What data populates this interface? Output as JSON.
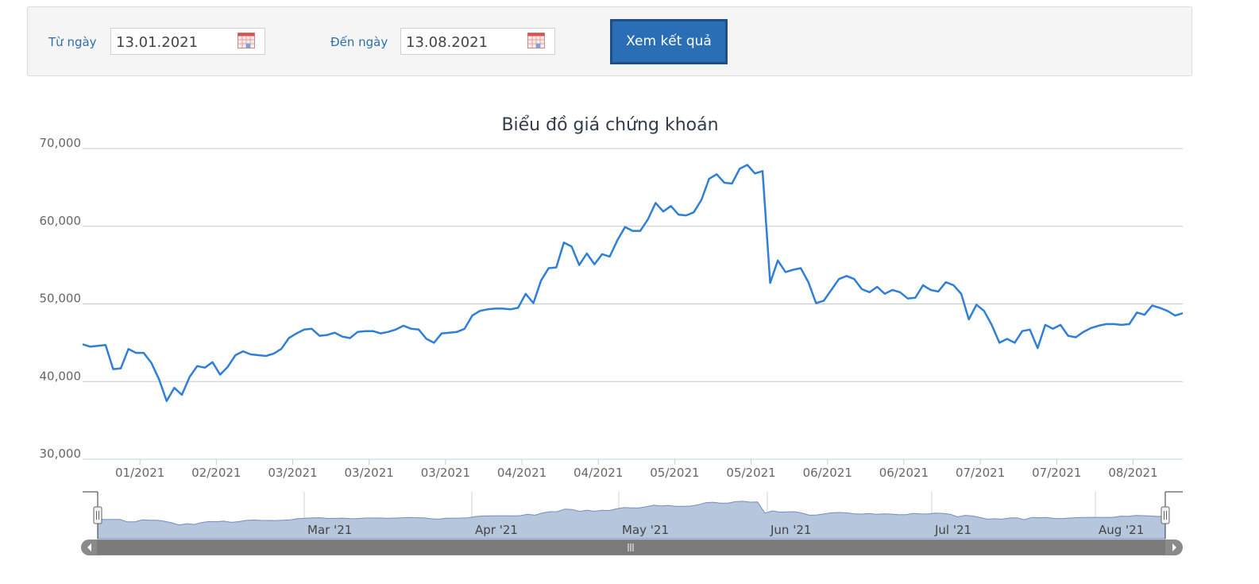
{
  "filter": {
    "from_label": "Từ ngày",
    "from_value": "13.01.2021",
    "to_label": "Đến ngày",
    "to_value": "13.08.2021",
    "submit_label": "Xem kết quả"
  },
  "colors": {
    "line": "#2f7fd8",
    "accent": "#2a6fb5",
    "navigator_fill": "#b6c6dd"
  },
  "chart_data": {
    "type": "line",
    "title": "Biểu đồ giá chứng khoán",
    "xlabel": "",
    "ylabel": "",
    "ylim": [
      30000,
      70000
    ],
    "y_ticks": [
      30000,
      40000,
      50000,
      60000,
      70000
    ],
    "y_tick_labels": [
      "30,000",
      "40,000",
      "50,000",
      "60,000",
      "70,000"
    ],
    "x_tick_labels": [
      "01/2021",
      "02/2021",
      "03/2021",
      "03/2021",
      "03/2021",
      "04/2021",
      "04/2021",
      "05/2021",
      "05/2021",
      "06/2021",
      "06/2021",
      "07/2021",
      "07/2021",
      "08/2021"
    ],
    "grid": true,
    "legend": "none",
    "series": [
      {
        "values": [
          44800,
          44500,
          44600,
          44700,
          41600,
          41700,
          44200,
          43700,
          43700,
          42400,
          40300,
          37500,
          39200,
          38300,
          40600,
          42000,
          41800,
          42500,
          40900,
          41900,
          43400,
          43900,
          43500,
          43400,
          43300,
          43600,
          44200,
          45600,
          46200,
          46700,
          46800,
          45900,
          46000,
          46300,
          45800,
          45600,
          46400,
          46500,
          46500,
          46200,
          46400,
          46700,
          47200,
          46800,
          46700,
          45500,
          45000,
          46200,
          46300,
          46400,
          46800,
          48500,
          49100,
          49300,
          49400,
          49400,
          49300,
          49500,
          51300,
          50100,
          53000,
          54600,
          54700,
          57900,
          57400,
          55000,
          56500,
          55100,
          56400,
          56100,
          58200,
          59900,
          59400,
          59400,
          60900,
          63000,
          61900,
          62600,
          61500,
          61400,
          61800,
          63400,
          66100,
          66700,
          65600,
          65500,
          67400,
          67900,
          66800,
          67100,
          52700,
          55600,
          54100,
          54400,
          54600,
          52800,
          50100,
          50400,
          51800,
          53200,
          53600,
          53200,
          51900,
          51500,
          52200,
          51300,
          51800,
          51500,
          50700,
          50800,
          52400,
          51800,
          51600,
          52800,
          52400,
          51300,
          48000,
          49900,
          49100,
          47300,
          45000,
          45500,
          45000,
          46500,
          46700,
          44300,
          47300,
          46800,
          47300,
          45900,
          45700,
          46400,
          46900,
          47200,
          47400,
          47400,
          47300,
          47400,
          48900,
          48600,
          49800,
          49500,
          49100,
          48500,
          48800
        ]
      }
    ],
    "navigator": {
      "labels": [
        "Mar '21",
        "Apr '21",
        "May '21",
        "Jun '21",
        "Jul '21",
        "Aug '21"
      ]
    }
  }
}
